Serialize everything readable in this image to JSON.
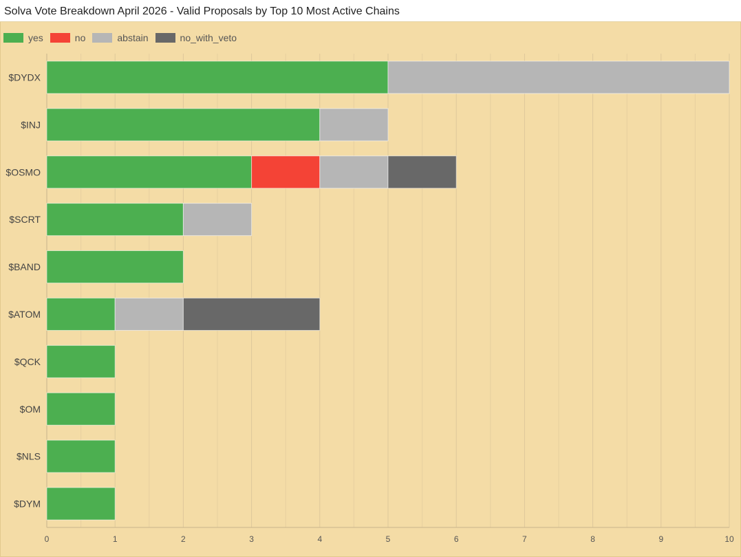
{
  "title": "Solva Vote Breakdown April 2026 - Valid Proposals by Top 10 Most Active Chains",
  "chart_data": {
    "type": "bar",
    "orientation": "horizontal",
    "stacked": true,
    "categories": [
      "$DYDX",
      "$INJ",
      "$OSMO",
      "$SCRT",
      "$BAND",
      "$ATOM",
      "$QCK",
      "$OM",
      "$NLS",
      "$DYM"
    ],
    "series": [
      {
        "name": "yes",
        "color": "#4caf50",
        "values": [
          5,
          4,
          3,
          2,
          2,
          1,
          1,
          1,
          1,
          1
        ]
      },
      {
        "name": "no",
        "color": "#f44336",
        "values": [
          0,
          0,
          1,
          0,
          0,
          0,
          0,
          0,
          0,
          0
        ]
      },
      {
        "name": "abstain",
        "color": "#b6b6b6",
        "values": [
          5,
          1,
          1,
          1,
          0,
          1,
          0,
          0,
          0,
          0
        ]
      },
      {
        "name": "no_with_veto",
        "color": "#686868",
        "values": [
          0,
          0,
          1,
          0,
          0,
          2,
          0,
          0,
          0,
          0
        ]
      }
    ],
    "xlim": [
      0,
      10
    ],
    "xticks": [
      "0",
      "1",
      "2",
      "3",
      "4",
      "5",
      "6",
      "7",
      "8",
      "9",
      "10"
    ],
    "grid": true,
    "legend_position": "top-left"
  }
}
